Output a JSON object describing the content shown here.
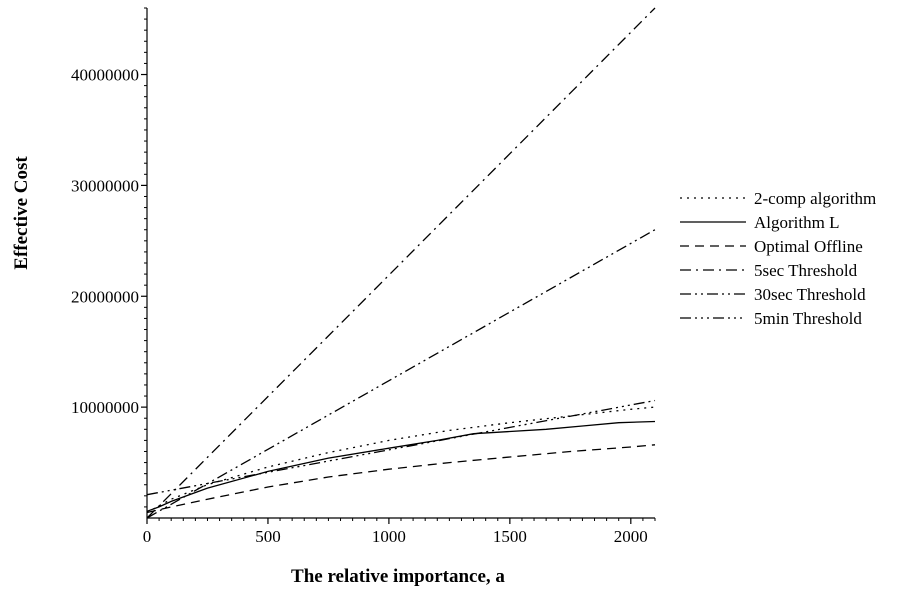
{
  "chart_data": {
    "type": "line",
    "title": "",
    "xlabel": "The relative importance, a",
    "ylabel": "Effective Cost",
    "xlim": [
      0,
      2100
    ],
    "ylim": [
      0,
      46000000
    ],
    "x_ticks": [
      0,
      500,
      1000,
      1500,
      2000
    ],
    "x_tick_labels": [
      "0",
      "500",
      "1000",
      "1500",
      "2000"
    ],
    "y_ticks": [
      10000000,
      20000000,
      30000000,
      40000000
    ],
    "y_tick_labels": [
      "10000000",
      "20000000",
      "30000000",
      "40000000"
    ],
    "grid": false,
    "legend_position": "right",
    "series": [
      {
        "name": "2-comp algorithm",
        "dash": "dotted",
        "x": [
          0,
          100,
          250,
          500,
          750,
          1000,
          1250,
          1500,
          1750,
          2000,
          2100
        ],
        "y": [
          500000,
          1700000,
          3000000,
          4600000,
          5900000,
          7000000,
          7900000,
          8600000,
          9200000,
          9800000,
          10000000
        ]
      },
      {
        "name": "Algorithm L",
        "dash": "solid",
        "x": [
          0,
          50,
          100,
          250,
          500,
          750,
          1000,
          1200,
          1350,
          1500,
          1650,
          1800,
          1950,
          2100
        ],
        "y": [
          600000,
          1000000,
          1500000,
          2700000,
          4200000,
          5400000,
          6300000,
          7000000,
          7600000,
          7800000,
          8000000,
          8300000,
          8600000,
          8700000
        ]
      },
      {
        "name": "Optimal Offline",
        "dash": "dashed",
        "x": [
          0,
          100,
          250,
          500,
          750,
          1000,
          1250,
          1500,
          1750,
          2000,
          2100
        ],
        "y": [
          500000,
          1000000,
          1700000,
          2800000,
          3700000,
          4400000,
          5000000,
          5500000,
          6000000,
          6400000,
          6600000
        ]
      },
      {
        "name": "5sec Threshold",
        "dash": "dash-dot",
        "x": [
          0,
          2100
        ],
        "y": [
          0,
          46000000
        ]
      },
      {
        "name": "30sec Threshold",
        "dash": "dash-dot-dot",
        "x": [
          0,
          2100
        ],
        "y": [
          0,
          26000000
        ]
      },
      {
        "name": "5min Threshold",
        "dash": "dash-dot-dot-dot",
        "x": [
          0,
          2100
        ],
        "y": [
          2100000,
          10600000
        ]
      }
    ]
  }
}
